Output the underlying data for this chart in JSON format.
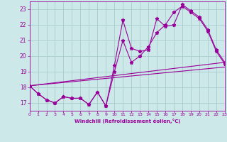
{
  "xlabel": "Windchill (Refroidissement éolien,°C)",
  "bg_color": "#cce8e8",
  "line_color": "#990099",
  "grid_color": "#aacccc",
  "xlim": [
    0,
    23
  ],
  "ylim": [
    16.5,
    23.5
  ],
  "yticks": [
    17,
    18,
    19,
    20,
    21,
    22,
    23
  ],
  "xticks": [
    0,
    1,
    2,
    3,
    4,
    5,
    6,
    7,
    8,
    9,
    10,
    11,
    12,
    13,
    14,
    15,
    16,
    17,
    18,
    19,
    20,
    21,
    22,
    23
  ],
  "line1_x": [
    0,
    1,
    2,
    3,
    4,
    5,
    6,
    7,
    8,
    9,
    10,
    11,
    12,
    13,
    14,
    15,
    16,
    17,
    18,
    19,
    20,
    21,
    22,
    23
  ],
  "line1_y": [
    18.1,
    17.6,
    17.2,
    17.0,
    17.4,
    17.3,
    17.3,
    16.9,
    17.7,
    16.8,
    19.4,
    22.3,
    20.5,
    20.3,
    20.4,
    22.4,
    21.9,
    22.0,
    23.3,
    22.9,
    22.5,
    21.7,
    20.4,
    19.6
  ],
  "line2_x": [
    0,
    1,
    2,
    3,
    4,
    5,
    6,
    7,
    8,
    9,
    10,
    11,
    12,
    13,
    14,
    15,
    16,
    17,
    18,
    19,
    20,
    21,
    22,
    23
  ],
  "line2_y": [
    18.1,
    17.6,
    17.2,
    17.0,
    17.4,
    17.3,
    17.3,
    16.9,
    17.7,
    16.8,
    19.0,
    21.0,
    19.6,
    20.0,
    20.6,
    21.5,
    22.0,
    22.8,
    23.2,
    22.8,
    22.4,
    21.6,
    20.3,
    19.5
  ],
  "line3_x": [
    0,
    23
  ],
  "line3_y": [
    18.1,
    19.6
  ],
  "line4_x": [
    0,
    23
  ],
  "line4_y": [
    18.1,
    19.6
  ]
}
